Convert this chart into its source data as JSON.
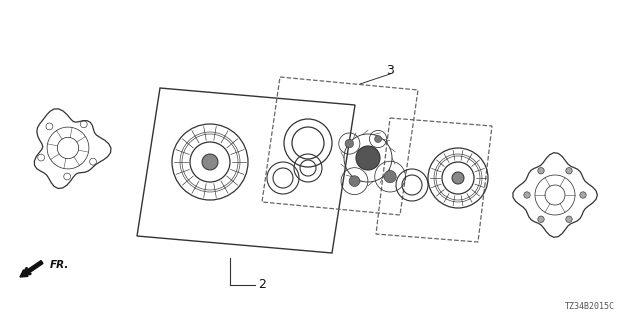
{
  "bg_color": "#ffffff",
  "part_label_2": "2",
  "part_label_3": "3",
  "part_code": "TZ34B2015C",
  "fr_label": "FR.",
  "fig_width": 6.4,
  "fig_height": 3.2,
  "line_color": "#333333",
  "dashed_color": "#666666"
}
